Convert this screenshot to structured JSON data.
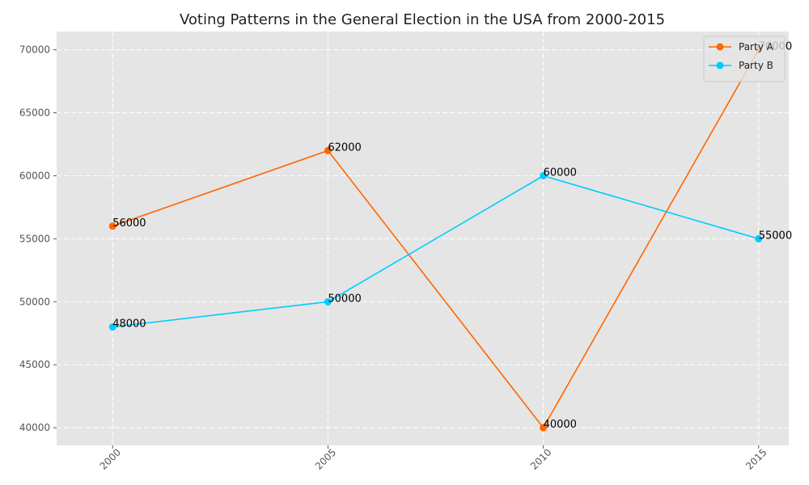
{
  "chart_data": {
    "type": "line",
    "title": "Voting Patterns in the General Election in the USA from 2000-2015",
    "xlabel": "",
    "ylabel": "",
    "categories": [
      "2000",
      "2005",
      "2010",
      "2015"
    ],
    "x": [
      2000,
      2005,
      2010,
      2015
    ],
    "xlim": [
      1998.7,
      2015.7
    ],
    "ylim": [
      38600,
      71450
    ],
    "yticks": [
      40000,
      45000,
      50000,
      55000,
      60000,
      65000,
      70000
    ],
    "grid": true,
    "legend_position": "top-right",
    "series": [
      {
        "name": "Party A",
        "color": "#ff6600",
        "values": [
          56000,
          62000,
          40000,
          70000
        ]
      },
      {
        "name": "Party B",
        "color": "#00ccff",
        "values": [
          48000,
          50000,
          60000,
          55000
        ]
      }
    ]
  }
}
